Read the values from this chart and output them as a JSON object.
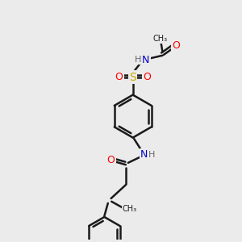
{
  "bg_color": "#ebebeb",
  "bond_color": "#1a1a1a",
  "bond_width": 1.8,
  "atom_colors": {
    "N": "#0000cc",
    "O": "#ff0000",
    "S": "#ccaa00",
    "H": "#666666",
    "C": "#1a1a1a"
  },
  "font_size": 9,
  "fig_size": [
    3.0,
    3.0
  ],
  "dpi": 100,
  "xlim": [
    0,
    10
  ],
  "ylim": [
    0,
    10
  ]
}
